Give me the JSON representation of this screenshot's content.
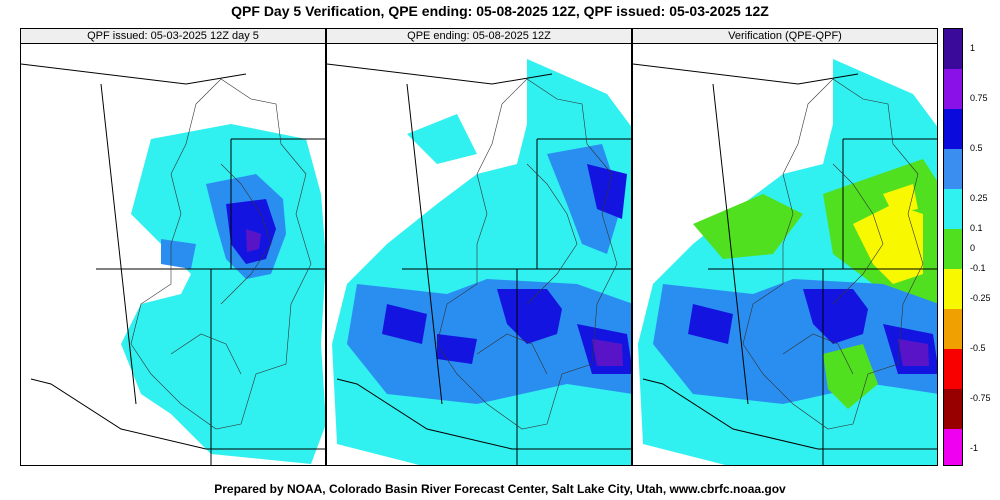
{
  "title": "QPF Day 5 Verification, QPE ending: 05-08-2025 12Z, QPF issued: 05-03-2025 12Z",
  "footer": "Prepared by NOAA, Colorado Basin River Forecast Center, Salt Lake City, Utah, www.cbrfc.noaa.gov",
  "panels": [
    {
      "label": "QPF issued: 05-03-2025 12Z day 5"
    },
    {
      "label": "QPE ending: 05-08-2025 12Z"
    },
    {
      "label": "Verification (QPE-QPF)"
    }
  ],
  "legend": {
    "labels": [
      "1",
      "0.75",
      "0.5",
      "0.25",
      "0.1",
      "0",
      "-0.1",
      "-0.25",
      "-0.5",
      "-0.75",
      "-1"
    ],
    "colors": [
      "#3a0a9a",
      "#8a12e8",
      "#0a0adc",
      "#3a8ef0",
      "#30f0f0",
      "#50e020",
      "#f8f800",
      "#f0a000",
      "#f80000",
      "#980000",
      "#f000f0"
    ]
  },
  "colors": {
    "light_precip": "#30f0f0",
    "moderate_precip": "#2a8ef0",
    "heavy_precip": "#1414e0",
    "very_heavy_precip": "#5a14c8",
    "negative_small": "#50e020",
    "negative_medium": "#f8f800"
  }
}
